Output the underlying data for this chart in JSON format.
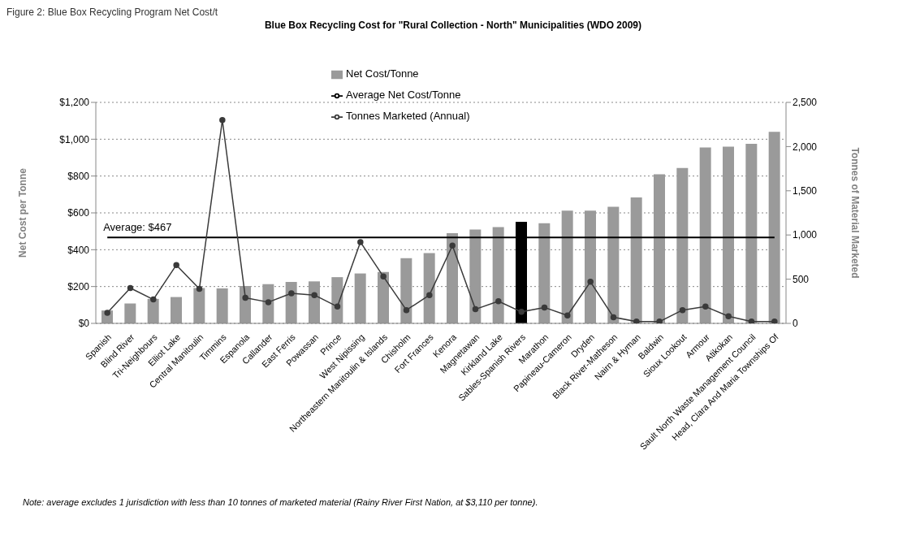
{
  "chart_data": {
    "type": "bar",
    "title": "Blue Box Recycling Cost for \"Rural Collection - North\" Municipalities (WDO 2009)",
    "ylabel": "Net Cost per Tonne",
    "y2label": "Tonnes of Material Marketed",
    "annotations": [
      "Figure 2: Blue Box Recycling Program Net Cost/t",
      {
        "text": "Average: $467",
        "x": "Spanish",
        "y": 467
      },
      "Note: average excludes 1 jurisdiction with less than 10 tonnes of marketed material (Rainy River First Nation, at $3,110 per tonne)."
    ],
    "categories": [
      "Spanish",
      "Blind River",
      "Tri-Neighbours",
      "Elliot Lake",
      "Central Manitoulin",
      "Timmins",
      "Espanola",
      "Callander",
      "East Ferris",
      "Powassan",
      "Prince",
      "West Nipissing",
      "Northeastern Manitoulin & Islands",
      "Chisholm",
      "Fort Frances",
      "Kenora",
      "Magnetawan",
      "Kirkland Lake",
      "Sables-Spanish Rivers",
      "Marathon",
      "Papineau-Cameron",
      "Dryden",
      "Black River-Matheson",
      "Nairn & Hyman",
      "Baldwin",
      "Sioux Lookout",
      "Armour",
      "Atikokan",
      "Sault North Waste Management Council",
      "Head, Clara And Maria Townships Of"
    ],
    "series": [
      {
        "name": "Net Cost/Tonne",
        "colors": [
          "#9a9a9a",
          "#9a9a9a",
          "#9a9a9a",
          "#9a9a9a",
          "#9a9a9a",
          "#9a9a9a",
          "#9a9a9a",
          "#9a9a9a",
          "#9a9a9a",
          "#9a9a9a",
          "#9a9a9a",
          "#9a9a9a",
          "#9a9a9a",
          "#9a9a9a",
          "#9a9a9a",
          "#9a9a9a",
          "#9a9a9a",
          "#9a9a9a",
          "#000000",
          "#9a9a9a",
          "#9a9a9a",
          "#9a9a9a",
          "#9a9a9a",
          "#9a9a9a",
          "#9a9a9a",
          "#9a9a9a",
          "#9a9a9a",
          "#9a9a9a",
          "#9a9a9a",
          "#9a9a9a"
        ],
        "values": [
          70,
          108,
          133,
          143,
          192,
          190,
          203,
          213,
          225,
          228,
          251,
          271,
          279,
          354,
          382,
          490,
          510,
          523,
          551,
          544,
          612,
          612,
          633,
          684,
          810,
          844,
          955,
          960,
          975,
          1040
        ]
      },
      {
        "type": "line",
        "name": "Average Net Cost/Tonne",
        "color": "#000000",
        "marker": "none",
        "values": [
          467,
          467,
          467,
          467,
          467,
          467,
          467,
          467,
          467,
          467,
          467,
          467,
          467,
          467,
          467,
          467,
          467,
          467,
          467,
          467,
          467,
          467,
          467,
          467,
          467,
          467,
          467,
          467,
          467,
          467
        ]
      },
      {
        "type": "line",
        "name": "Tonnes Marketed (Annual)",
        "color": "#3a3a3a",
        "axis": "y2",
        "marker": "circle",
        "values": [
          120,
          400,
          270,
          660,
          390,
          2300,
          290,
          240,
          340,
          320,
          190,
          920,
          530,
          150,
          320,
          880,
          160,
          250,
          130,
          180,
          90,
          470,
          70,
          20,
          20,
          150,
          190,
          80,
          20,
          20
        ]
      }
    ],
    "ylim": [
      0,
      1200
    ],
    "yticks": [
      {
        "value": 0,
        "label": "$0"
      },
      {
        "value": 200,
        "label": "$200"
      },
      {
        "value": 400,
        "label": "$400"
      },
      {
        "value": 600,
        "label": "$600"
      },
      {
        "value": 800,
        "label": "$800"
      },
      {
        "value": 1000,
        "label": "$1,000"
      },
      {
        "value": 1200,
        "label": "$1,200"
      }
    ],
    "y2lim": [
      0,
      2500
    ],
    "y2ticks": [
      0,
      500,
      {
        "value": 1000,
        "label": "1,000"
      },
      {
        "value": 1500,
        "label": "1,500"
      },
      {
        "value": 2000,
        "label": "2,000"
      },
      {
        "value": 2500,
        "label": "2,500"
      }
    ],
    "grid": "y",
    "legend": "top"
  }
}
